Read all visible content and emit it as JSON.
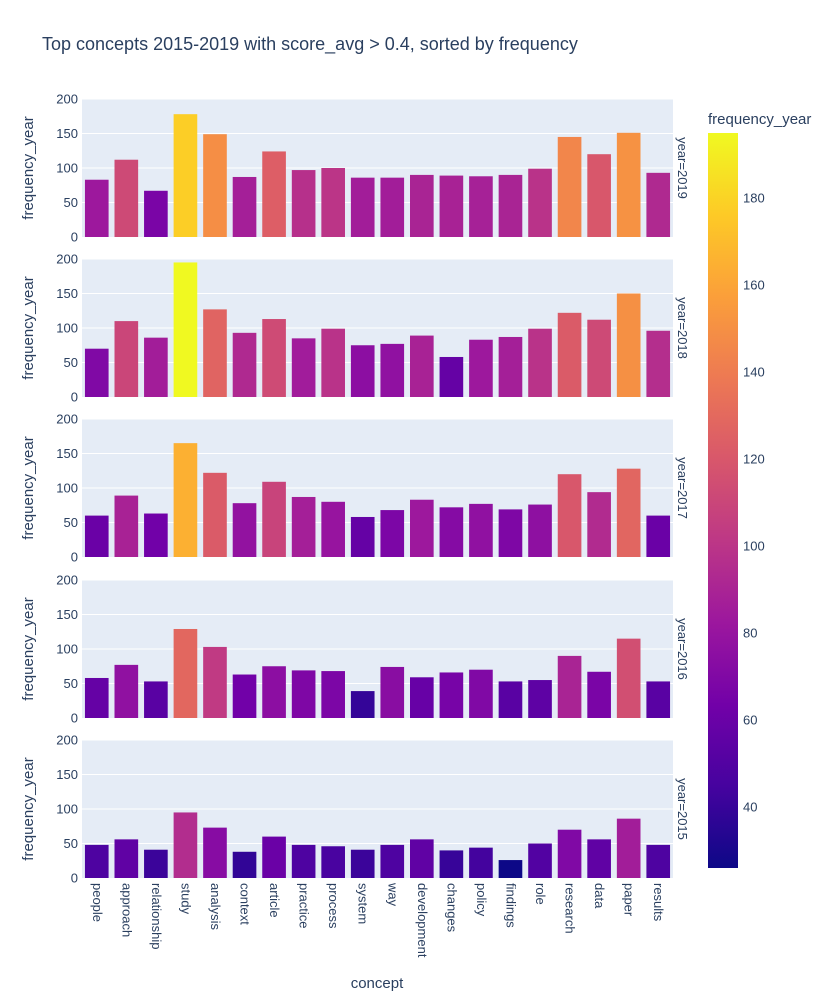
{
  "chart_data": {
    "type": "bar",
    "title": "Top concepts 2015-2019 with score_avg > 0.4, sorted by frequency",
    "xlabel": "concept",
    "ylabel": "frequency_year",
    "ylim": [
      0,
      200
    ],
    "yticks": [
      0,
      50,
      100,
      150,
      200
    ],
    "grid": true,
    "categories": [
      "people",
      "approach",
      "relationship",
      "study",
      "analysis",
      "context",
      "article",
      "practice",
      "process",
      "system",
      "way",
      "development",
      "changes",
      "policy",
      "findings",
      "role",
      "research",
      "data",
      "paper",
      "results"
    ],
    "facets": [
      {
        "label": "year=2019",
        "values": [
          83,
          112,
          67,
          178,
          149,
          87,
          124,
          97,
          100,
          86,
          86,
          90,
          89,
          88,
          90,
          99,
          145,
          120,
          151,
          93
        ]
      },
      {
        "label": "year=2018",
        "values": [
          70,
          110,
          86,
          195,
          127,
          93,
          113,
          85,
          99,
          75,
          77,
          89,
          58,
          83,
          87,
          99,
          122,
          112,
          150,
          96
        ]
      },
      {
        "label": "year=2017",
        "values": [
          60,
          89,
          63,
          165,
          122,
          78,
          109,
          87,
          80,
          58,
          68,
          83,
          72,
          77,
          69,
          76,
          120,
          94,
          128,
          60
        ]
      },
      {
        "label": "year=2016",
        "values": [
          58,
          77,
          53,
          129,
          103,
          63,
          75,
          69,
          68,
          39,
          74,
          59,
          66,
          70,
          53,
          55,
          90,
          67,
          115,
          53
        ]
      },
      {
        "label": "year=2015",
        "values": [
          48,
          56,
          41,
          95,
          73,
          38,
          60,
          48,
          46,
          41,
          48,
          56,
          40,
          44,
          26,
          50,
          70,
          56,
          86,
          48
        ]
      }
    ],
    "colorbar": {
      "title": "frequency_year",
      "range": [
        26,
        195
      ],
      "ticks": [
        40,
        60,
        80,
        100,
        120,
        140,
        160,
        180
      ],
      "colorscale": [
        "#0d0887",
        "#46039f",
        "#7201a8",
        "#9c179e",
        "#bd3786",
        "#d8576b",
        "#ed7953",
        "#fb9f3a",
        "#fdca26",
        "#f0f921"
      ]
    }
  }
}
